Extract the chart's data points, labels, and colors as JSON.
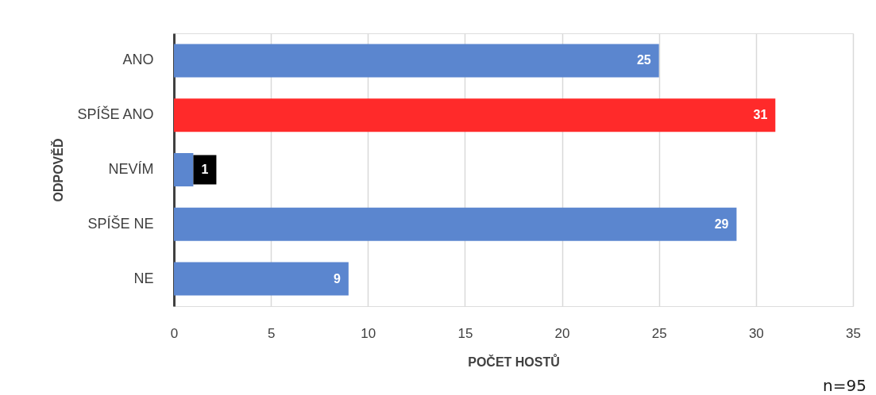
{
  "chart_data": {
    "type": "bar",
    "orientation": "horizontal",
    "categories": [
      "ANO",
      "SPÍŠE ANO",
      "NEVÍM",
      "SPÍŠE NE",
      "NE"
    ],
    "values": [
      25,
      31,
      1,
      29,
      9
    ],
    "colors": [
      "#5b86cf",
      "#ff2a2a",
      "#5b86cf",
      "#5b86cf",
      "#5b86cf"
    ],
    "xlim": [
      0,
      35
    ],
    "xticks": [
      0,
      5,
      10,
      15,
      20,
      25,
      30,
      35
    ],
    "xlabel": "POČET HOSTŮ",
    "ylabel": "ODPOVĚĎ",
    "grid": "x",
    "data_labels": true,
    "annotations": [
      "n=95"
    ]
  }
}
